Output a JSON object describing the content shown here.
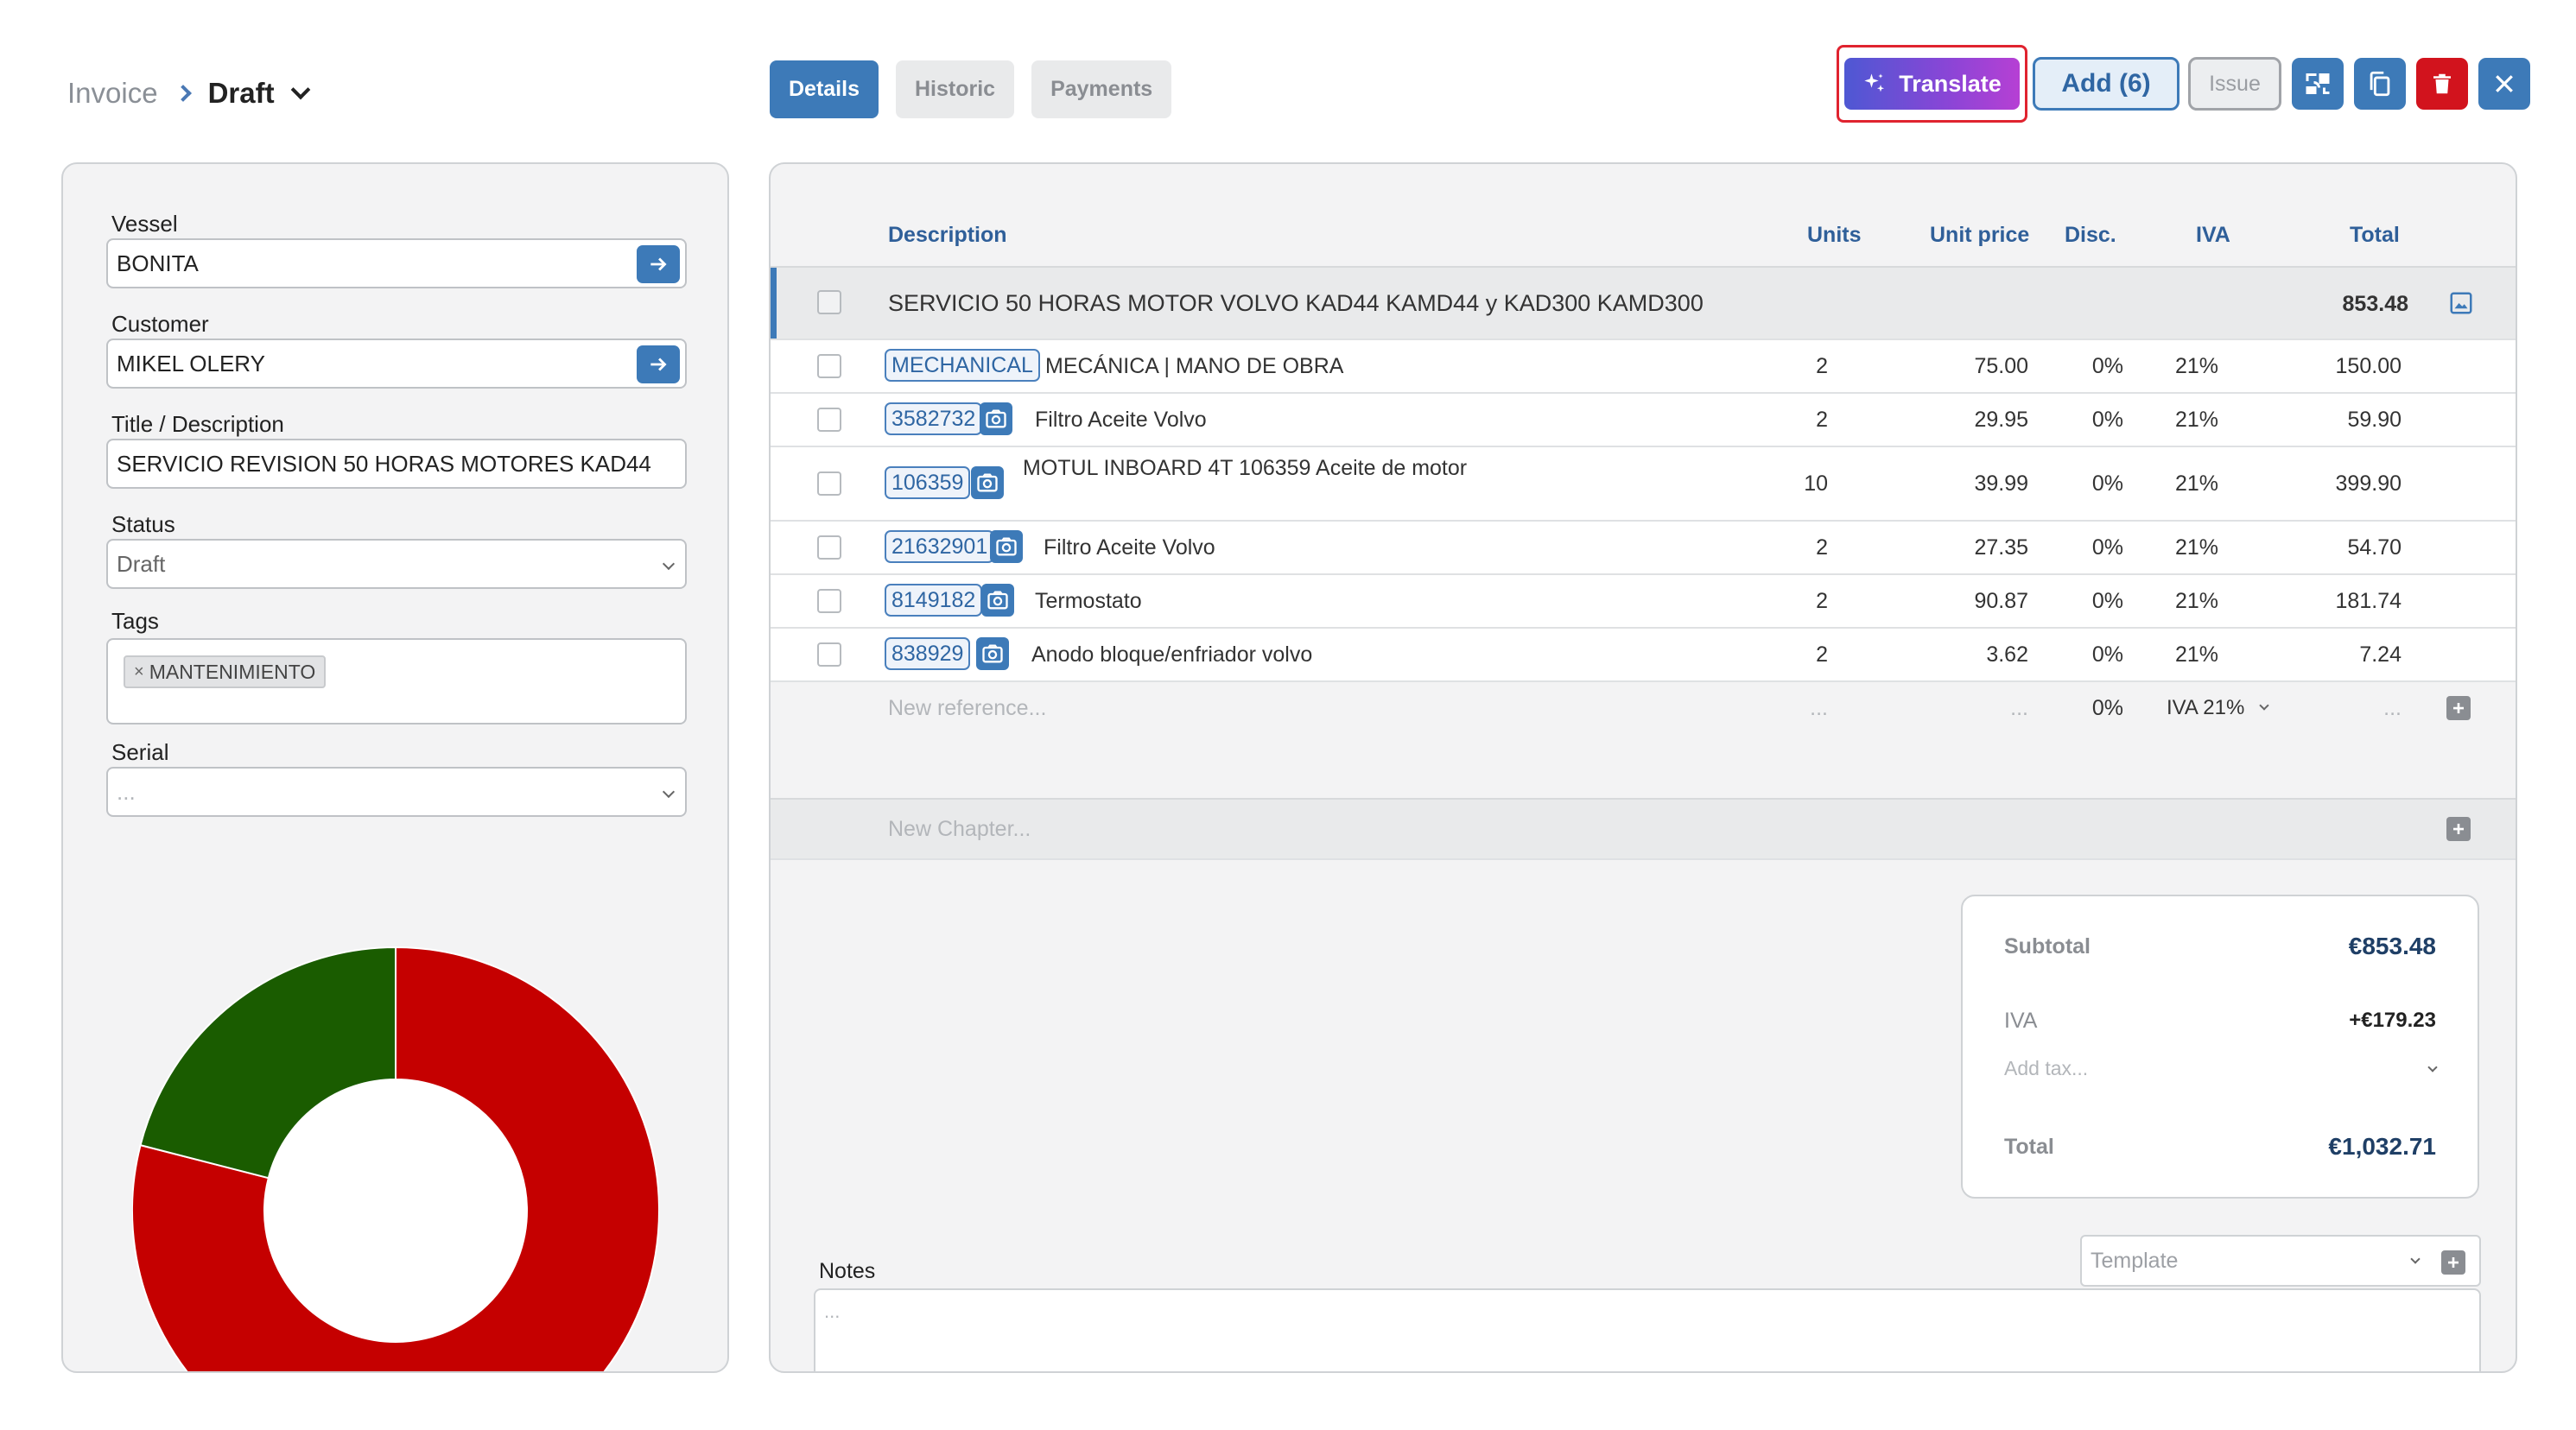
{
  "breadcrumb": {
    "root": "Invoice",
    "current": "Draft"
  },
  "tabs": [
    {
      "label": "Details",
      "active": true
    },
    {
      "label": "Historic",
      "active": false
    },
    {
      "label": "Payments",
      "active": false
    }
  ],
  "toolbar": {
    "translate_label": "Translate",
    "add_label": "Add (6)",
    "issue_label": "Issue",
    "icons": [
      "replace-icon",
      "copy-icon",
      "trash-icon",
      "close-icon"
    ]
  },
  "form": {
    "vessel": {
      "label": "Vessel",
      "value": "BONITA"
    },
    "customer": {
      "label": "Customer",
      "value": "MIKEL OLERY"
    },
    "title": {
      "label": "Title / Description",
      "value": "SERVICIO REVISION 50 HORAS MOTORES KAD44"
    },
    "status": {
      "label": "Status",
      "value": "Draft"
    },
    "tags": {
      "label": "Tags",
      "items": [
        "MANTENIMIENTO"
      ]
    },
    "serial": {
      "label": "Serial",
      "placeholder": "..."
    }
  },
  "donut": {
    "segments": [
      {
        "value": 0.79,
        "color": "#c50000"
      },
      {
        "value": 0.21,
        "color": "#1a5c00"
      }
    ]
  },
  "table": {
    "headers": {
      "description": "Description",
      "units": "Units",
      "unit_price": "Unit price",
      "disc": "Disc.",
      "iva": "IVA",
      "total": "Total"
    },
    "chapter": {
      "description": "SERVICIO 50 HORAS MOTOR VOLVO KAD44 KAMD44 y KAD300 KAMD300",
      "total": "853.48"
    },
    "rows": [
      {
        "ref": "MECHANICAL",
        "camera": false,
        "description": "MECÁNICA | MANO DE OBRA",
        "units": "2",
        "unit_price": "75.00",
        "disc": "0%",
        "iva": "21%",
        "total": "150.00"
      },
      {
        "ref": "3582732",
        "camera": true,
        "description": "Filtro Aceite Volvo",
        "units": "2",
        "unit_price": "29.95",
        "disc": "0%",
        "iva": "21%",
        "total": "59.90"
      },
      {
        "ref": "106359",
        "camera": true,
        "description": "MOTUL INBOARD 4T 106359 Aceite de motor",
        "units": "10",
        "unit_price": "39.99",
        "disc": "0%",
        "iva": "21%",
        "total": "399.90"
      },
      {
        "ref": "21632901",
        "camera": true,
        "description": "Filtro Aceite Volvo",
        "units": "2",
        "unit_price": "27.35",
        "disc": "0%",
        "iva": "21%",
        "total": "54.70"
      },
      {
        "ref": "8149182",
        "camera": true,
        "description": "Termostato",
        "units": "2",
        "unit_price": "90.87",
        "disc": "0%",
        "iva": "21%",
        "total": "181.74"
      },
      {
        "ref": "838929",
        "camera": true,
        "description": "Anodo bloque/enfriador volvo",
        "units": "2",
        "unit_price": "3.62",
        "disc": "0%",
        "iva": "21%",
        "total": "7.24"
      }
    ],
    "new_row": {
      "placeholder": "New reference...",
      "units": "...",
      "unit_price": "...",
      "disc": "0%",
      "iva": "IVA 21%",
      "total": "..."
    },
    "new_chapter": "New Chapter..."
  },
  "totals": {
    "subtotal_label": "Subtotal",
    "subtotal": "€853.48",
    "iva_label": "IVA",
    "iva": "+€179.23",
    "add_tax": "Add tax...",
    "total_label": "Total",
    "total": "€1,032.71"
  },
  "notes": {
    "label": "Notes",
    "placeholder": "...",
    "template_placeholder": "Template"
  }
}
